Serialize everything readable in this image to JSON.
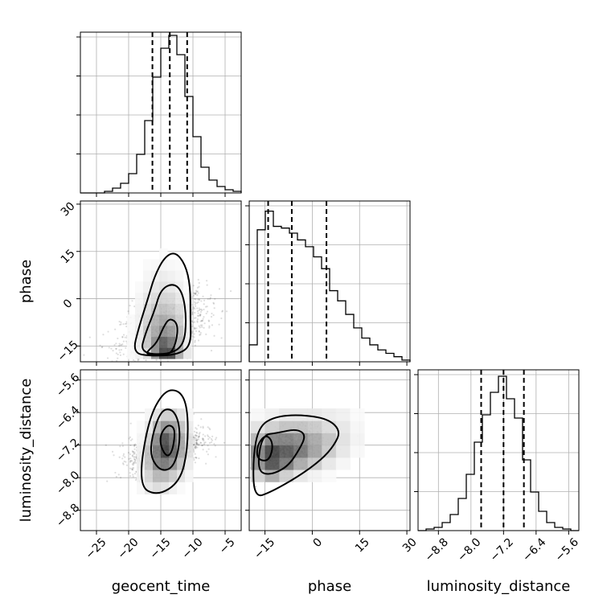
{
  "chart_data": {
    "type": "corner",
    "params": [
      {
        "name": "geocent_time",
        "range": [
          -27.5,
          -2.5
        ],
        "ticks": [
          -25,
          -20,
          -15,
          -10,
          -5
        ],
        "tick_labels": [
          "−25",
          "−20",
          "−15",
          "−10",
          "−5"
        ],
        "quantiles": [
          -16.3,
          -13.6,
          -10.9
        ],
        "hist_edges": [
          -27.5,
          -26.25,
          -25,
          -23.75,
          -22.5,
          -21.25,
          -20,
          -18.75,
          -17.5,
          -16.25,
          -15,
          -13.75,
          -12.5,
          -11.25,
          -10,
          -8.75,
          -7.5,
          -6.25,
          -5,
          -3.75,
          -2.5
        ],
        "hist_counts": [
          0,
          0,
          0,
          1,
          3,
          6,
          12,
          24,
          45,
          72,
          90,
          98,
          86,
          60,
          35,
          16,
          8,
          4,
          2,
          1
        ],
        "hist_max": 100
      },
      {
        "name": "phase",
        "range": [
          -20,
          31
        ],
        "ticks": [
          -15,
          0,
          15,
          30
        ],
        "tick_labels": [
          "−15",
          "0",
          "15",
          "30"
        ],
        "quantiles": [
          -14,
          -6.5,
          4.5
        ],
        "hist_edges": [
          -20,
          -17.45,
          -14.9,
          -12.35,
          -9.8,
          -7.25,
          -4.7,
          -2.15,
          0.4,
          2.95,
          5.5,
          8.05,
          10.6,
          13.15,
          15.7,
          18.25,
          20.8,
          23.35,
          25.9,
          28.45,
          31
        ],
        "hist_counts": [
          10,
          78,
          89,
          80,
          79,
          76,
          72,
          68,
          62,
          55,
          42,
          36,
          28,
          20,
          14,
          10,
          7,
          5,
          3,
          1
        ],
        "hist_max": 95
      },
      {
        "name": "luminosity_distance",
        "range": [
          -9.3,
          -5.35
        ],
        "ticks": [
          -8.8,
          -8.0,
          -7.2,
          -6.4,
          -5.6
        ],
        "tick_labels": [
          "−8.8",
          "−8.0",
          "−7.2",
          "−6.4",
          "−5.6"
        ],
        "quantiles": [
          -7.75,
          -7.2,
          -6.7
        ],
        "hist_edges": [
          -9.3,
          -9.1025,
          -8.905,
          -8.7075,
          -8.51,
          -8.3125,
          -8.115,
          -7.9175,
          -7.72,
          -7.5225,
          -7.325,
          -7.1275,
          -6.93,
          -6.7325,
          -6.535,
          -6.3375,
          -6.14,
          -5.9425,
          -5.745,
          -5.5475,
          -5.35
        ],
        "hist_counts": [
          0,
          1,
          2,
          5,
          10,
          20,
          35,
          55,
          72,
          86,
          96,
          82,
          70,
          44,
          24,
          12,
          5,
          2,
          1,
          0
        ],
        "hist_max": 100
      }
    ],
    "pairs": [
      {
        "x": 0,
        "y": 1,
        "density_x_edges": [
          -20.25,
          -19,
          -17.75,
          -16.5,
          -15.25,
          -14,
          -12.75,
          -11.5,
          -10.25
        ],
        "density_y_edges": [
          -19,
          -15.5,
          -12,
          -8.5,
          -5,
          -1.5,
          2,
          5.5,
          9,
          12.5,
          16
        ],
        "density": [
          [
            0.02,
            0.05,
            0.15,
            0.45,
            0.75,
            0.75,
            0.35,
            0.1
          ],
          [
            0.02,
            0.08,
            0.22,
            0.45,
            0.65,
            0.55,
            0.3,
            0.08
          ],
          [
            0.02,
            0.08,
            0.22,
            0.35,
            0.45,
            0.4,
            0.25,
            0.06
          ],
          [
            0.02,
            0.06,
            0.18,
            0.3,
            0.35,
            0.3,
            0.2,
            0.05
          ],
          [
            0.01,
            0.05,
            0.15,
            0.22,
            0.25,
            0.22,
            0.15,
            0.04
          ],
          [
            0,
            0.04,
            0.1,
            0.15,
            0.18,
            0.16,
            0.1,
            0.03
          ],
          [
            0,
            0.02,
            0.06,
            0.1,
            0.12,
            0.1,
            0.06,
            0.02
          ],
          [
            0,
            0.01,
            0.04,
            0.06,
            0.08,
            0.06,
            0.04,
            0.01
          ],
          [
            0,
            0,
            0.02,
            0.03,
            0.04,
            0.03,
            0.02,
            0
          ],
          [
            0,
            0,
            0,
            0.01,
            0.02,
            0.01,
            0,
            0
          ]
        ],
        "contours": [
          [
            [
              -17.2,
              -17.6
            ],
            [
              -15.6,
              -18
            ],
            [
              -13.6,
              -17.8
            ],
            [
              -12.6,
              -14
            ],
            [
              -12.3,
              -8
            ],
            [
              -13.6,
              -6
            ],
            [
              -14.6,
              -9
            ],
            [
              -15.6,
              -14
            ],
            [
              -17,
              -16.5
            ]
          ],
          [
            [
              -18.2,
              -17.2
            ],
            [
              -14,
              -17.8
            ],
            [
              -11.4,
              -15
            ],
            [
              -11,
              -6
            ],
            [
              -11.6,
              2
            ],
            [
              -13,
              5
            ],
            [
              -15,
              3
            ],
            [
              -16,
              -4
            ],
            [
              -17.4,
              -11
            ]
          ],
          [
            [
              -19.4,
              -17.2
            ],
            [
              -16.5,
              -18.2
            ],
            [
              -12.5,
              -17.8
            ],
            [
              -10.3,
              -15
            ],
            [
              -10.4,
              -6
            ],
            [
              -10.4,
              4
            ],
            [
              -11.2,
              11
            ],
            [
              -12.8,
              15
            ],
            [
              -14.5,
              13
            ],
            [
              -16,
              7
            ],
            [
              -17,
              0
            ],
            [
              -18.4,
              -9
            ]
          ]
        ],
        "scatter_spread": [
          6,
          11
        ]
      },
      {
        "x": 0,
        "y": 2,
        "density_x_edges": [
          -18.75,
          -17.5,
          -16.25,
          -15,
          -13.75,
          -12.5,
          -11.25,
          -10
        ],
        "density_y_edges": [
          -8.4,
          -8.1,
          -7.8,
          -7.5,
          -7.2,
          -6.9,
          -6.6,
          -6.3
        ],
        "density": [
          [
            0.03,
            0.1,
            0.15,
            0.12,
            0.06,
            0.02,
            0
          ],
          [
            0.06,
            0.18,
            0.3,
            0.3,
            0.22,
            0.12,
            0.04
          ],
          [
            0.08,
            0.25,
            0.5,
            0.55,
            0.45,
            0.25,
            0.08
          ],
          [
            0.06,
            0.25,
            0.55,
            0.75,
            0.6,
            0.35,
            0.12
          ],
          [
            0.04,
            0.18,
            0.45,
            0.7,
            0.55,
            0.35,
            0.12
          ],
          [
            0.02,
            0.1,
            0.3,
            0.45,
            0.4,
            0.25,
            0.08
          ],
          [
            0,
            0.04,
            0.12,
            0.2,
            0.2,
            0.12,
            0.04
          ]
        ],
        "contours": [
          [
            [
              -15,
              -7.25
            ],
            [
              -14,
              -7.5
            ],
            [
              -13.2,
              -7.35
            ],
            [
              -12.8,
              -6.95
            ],
            [
              -13,
              -6.75
            ],
            [
              -14,
              -6.7
            ],
            [
              -15.1,
              -6.95
            ]
          ],
          [
            [
              -16.6,
              -7.5
            ],
            [
              -15,
              -7.85
            ],
            [
              -13,
              -7.75
            ],
            [
              -12,
              -7.15
            ],
            [
              -12.2,
              -6.6
            ],
            [
              -13.3,
              -6.3
            ],
            [
              -15,
              -6.35
            ],
            [
              -16.4,
              -7
            ]
          ],
          [
            [
              -18.5,
              -8.2
            ],
            [
              -15.5,
              -8.45
            ],
            [
              -12,
              -8.1
            ],
            [
              -10.8,
              -7.3
            ],
            [
              -10.8,
              -6.3
            ],
            [
              -12,
              -5.85
            ],
            [
              -14.5,
              -5.85
            ],
            [
              -17,
              -6.6
            ]
          ]
        ],
        "scatter_spread": [
          5,
          0.55
        ]
      },
      {
        "x": 1,
        "y": 2,
        "density_x_edges": [
          -19.5,
          -15,
          -10.5,
          -6,
          -1.5,
          3,
          7.5,
          12,
          16.5
        ],
        "density_y_edges": [
          -8.1,
          -7.8,
          -7.5,
          -7.2,
          -6.9,
          -6.6,
          -6.3
        ],
        "density": [
          [
            0.2,
            0.35,
            0.2,
            0.1,
            0.05,
            0.02,
            0,
            0
          ],
          [
            0.45,
            0.7,
            0.55,
            0.35,
            0.22,
            0.1,
            0.04,
            0
          ],
          [
            0.5,
            0.75,
            0.65,
            0.55,
            0.38,
            0.22,
            0.1,
            0.03
          ],
          [
            0.3,
            0.5,
            0.5,
            0.45,
            0.35,
            0.25,
            0.12,
            0.05
          ],
          [
            0.12,
            0.2,
            0.25,
            0.25,
            0.22,
            0.15,
            0.1,
            0.04
          ],
          [
            0.03,
            0.06,
            0.1,
            0.1,
            0.1,
            0.08,
            0.06,
            0.02
          ]
        ],
        "contours": [
          [
            [
              -17.5,
              -7.55
            ],
            [
              -14,
              -7.6
            ],
            [
              -12.5,
              -7.3
            ],
            [
              -13,
              -7.05
            ],
            [
              -15,
              -6.95
            ],
            [
              -17.5,
              -7.2
            ]
          ],
          [
            [
              -17.5,
              -7.8
            ],
            [
              -14,
              -7.95
            ],
            [
              -8,
              -7.75
            ],
            [
              -4,
              -7.3
            ],
            [
              -2,
              -6.95
            ],
            [
              -5,
              -6.8
            ],
            [
              -11,
              -6.9
            ],
            [
              -16,
              -6.95
            ]
          ],
          [
            [
              -18.5,
              -8.5
            ],
            [
              -13,
              -8.35
            ],
            [
              -4,
              -7.95
            ],
            [
              3,
              -7.55
            ],
            [
              7,
              -7.2
            ],
            [
              9,
              -6.85
            ],
            [
              5,
              -6.55
            ],
            [
              -4,
              -6.45
            ],
            [
              -12,
              -6.5
            ],
            [
              -17,
              -6.75
            ],
            [
              -18.8,
              -7.5
            ]
          ]
        ],
        "scatter_spread": [
          9,
          0.55
        ]
      }
    ]
  }
}
